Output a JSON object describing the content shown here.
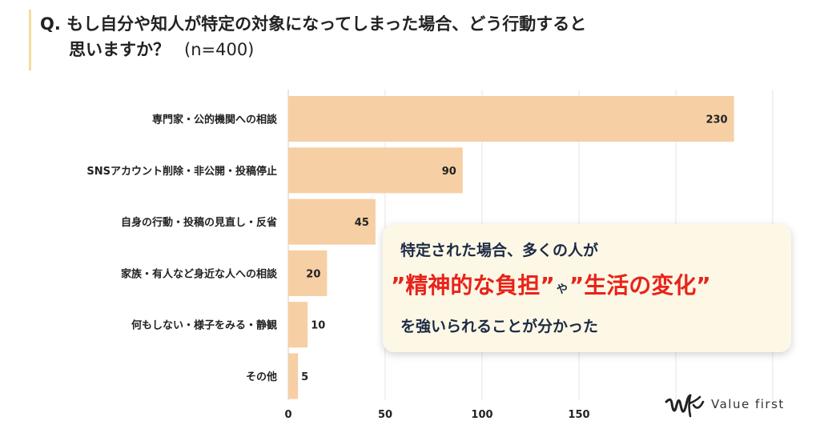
{
  "title": {
    "line1": "Q. もし自分や知人が特定の対象になってしまった場合、どう行動すると",
    "line2": "思いますか？",
    "n": "(n=400)"
  },
  "chart_data": {
    "type": "bar",
    "orientation": "horizontal",
    "categories": [
      "専門家・公的機関への相談",
      "SNSアカウント削除・非公開・投稿停止",
      "自身の行動・投稿の見直し・反省",
      "家族・有人など身近な人への相談",
      "何もしない・様子をみる・静観",
      "その他"
    ],
    "values": [
      230,
      90,
      45,
      20,
      10,
      5
    ],
    "xlim": [
      0,
      250
    ],
    "xticks": [
      0,
      50,
      100,
      150
    ],
    "grid": true,
    "bar_color": "#f6cfa4"
  },
  "callout": {
    "line1": "特定された場合、多くの人が",
    "em1": "”精神的な負担”",
    "ya": "や",
    "em2": "”生活の変化”",
    "line3": "を強いられることが分かった"
  },
  "logo": {
    "brand": "Value first"
  },
  "colors": {
    "accent_bar": "#f4dc9a",
    "highlight": "#e8231a",
    "text_navy": "#1d2a44",
    "callout_bg": "#fdf8e6"
  }
}
